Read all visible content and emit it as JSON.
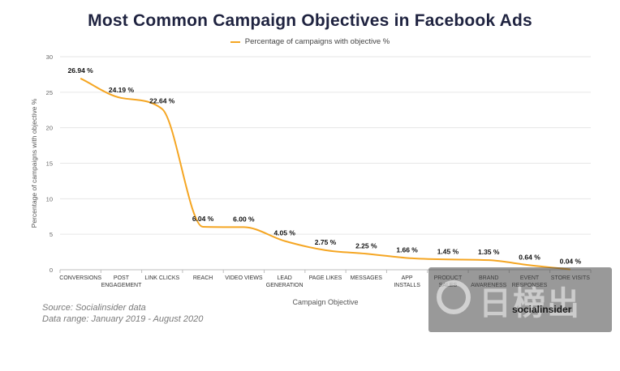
{
  "chart_data": {
    "type": "line",
    "title": "Most Common Campaign Objectives in Facebook Ads",
    "legend": {
      "label": "Percentage of campaigns with objective %",
      "position": "top-center"
    },
    "xlabel": "Campaign Objective",
    "ylabel": "Percentage of campaigns with objective %",
    "ylim": [
      0,
      30
    ],
    "yticks": [
      "0",
      "5",
      "10",
      "15",
      "20",
      "25",
      "30"
    ],
    "grid": true,
    "categories": [
      [
        "CONVERSIONS"
      ],
      [
        "POST",
        "ENGAGEMENT"
      ],
      [
        "LINK CLICKS"
      ],
      [
        "REACH"
      ],
      [
        "VIDEO VIEWS"
      ],
      [
        "LEAD",
        "GENERATION"
      ],
      [
        "PAGE LIKES"
      ],
      [
        "MESSAGES"
      ],
      [
        "APP",
        "INSTALLS"
      ],
      [
        "PRODUCT",
        "SALES"
      ],
      [
        "BRAND",
        "AWARENESS"
      ],
      [
        "EVENT",
        "RESPONSES"
      ],
      [
        "STORE VISITS"
      ]
    ],
    "series": [
      {
        "name": "Percentage of campaigns with objective %",
        "values": [
          26.94,
          24.19,
          22.64,
          6.04,
          6.0,
          4.05,
          2.75,
          2.25,
          1.66,
          1.45,
          1.35,
          0.64,
          0.04
        ],
        "labels": [
          "26.94 %",
          "24.19 %",
          "22.64 %",
          "6.04 %",
          "6.00 %",
          "4.05 %",
          "2.75 %",
          "2.25 %",
          "1.66 %",
          "1.45 %",
          "1.35 %",
          "0.64 %",
          "0.04 %"
        ]
      }
    ],
    "colors": {
      "line": "#f5a623",
      "title": "#1f2340",
      "grid": "#e6e6e6"
    }
  },
  "footer": {
    "source": "Source: Socialinsider data",
    "date_range": "Data range: January 2019 - August 2020",
    "brand": "socialinsider"
  },
  "watermark": {
    "text": "日榜出海"
  }
}
